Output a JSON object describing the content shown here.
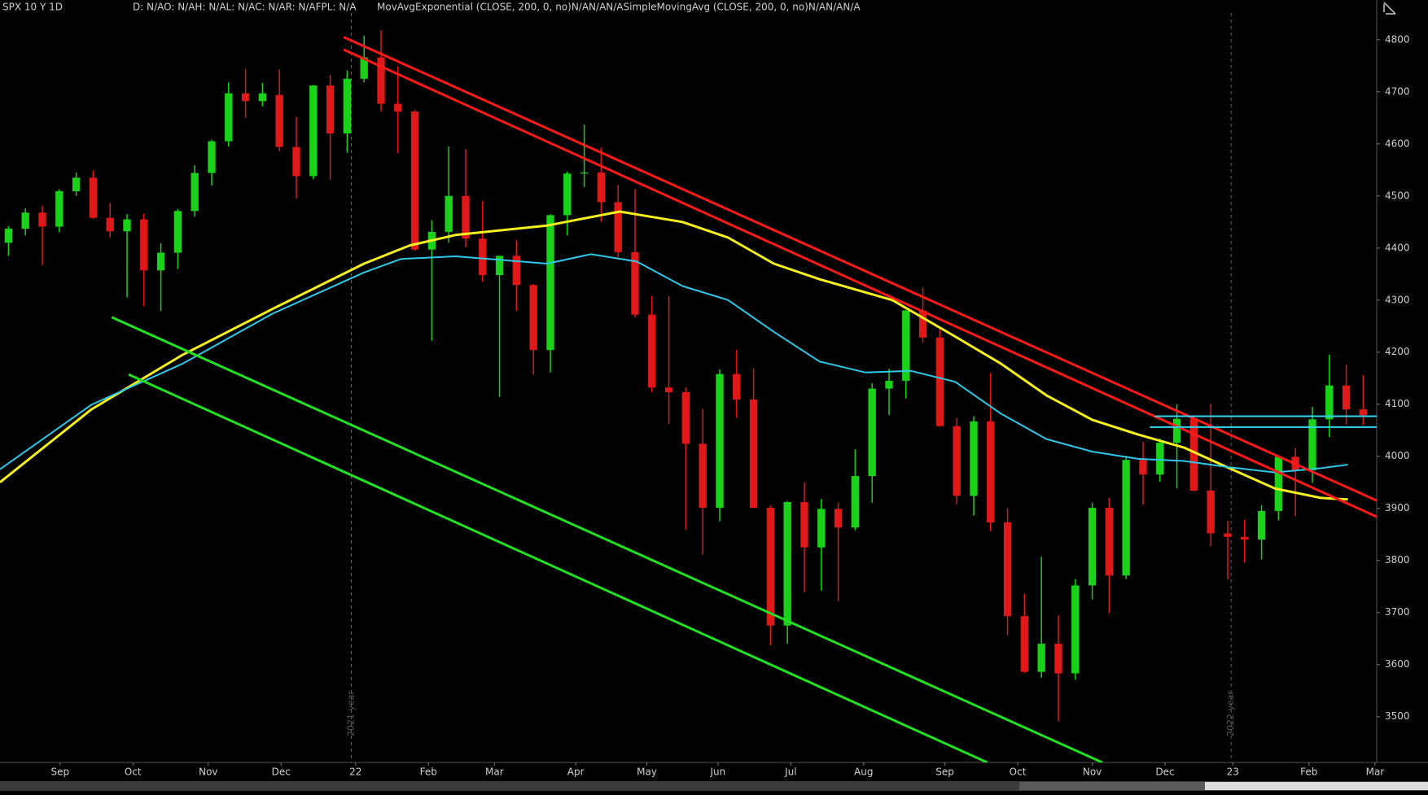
{
  "chart_data": {
    "type": "candlestick",
    "title": "SPX 10 Y 1D",
    "status": "D: N/AO: N/AH: N/AL: N/AC: N/AR: N/AFPL: N/A",
    "studies": "MovAvgExponential (CLOSE, 200, 0, no)N/AN/AN/ASimpleMovingAvg (CLOSE, 200, 0, no)N/AN/AN/A",
    "up_color": "#19d219",
    "down_color": "#e01818",
    "x": [
      0,
      1,
      2,
      3,
      4,
      5,
      6,
      7,
      8,
      9,
      10,
      11,
      12,
      13,
      14,
      15,
      16,
      17,
      18,
      19,
      20,
      21,
      22,
      23,
      24,
      25,
      26,
      27,
      28,
      29,
      30,
      31,
      32,
      33,
      34,
      35,
      36,
      37,
      38,
      39,
      40,
      41,
      42,
      43,
      44,
      45,
      46,
      47,
      48,
      49,
      50,
      51,
      52,
      53,
      54,
      55,
      56,
      57,
      58,
      59,
      60,
      61,
      62,
      63,
      64,
      65,
      66,
      67,
      68,
      69,
      70,
      71,
      72,
      73,
      74,
      75,
      76,
      77,
      78,
      79,
      80
    ],
    "open": [
      4410,
      4437,
      4468,
      4441,
      4509,
      4535,
      4458,
      4432,
      4455,
      4357,
      4391,
      4471,
      4544,
      4605,
      4697,
      4682,
      4694,
      4594,
      4538,
      4712,
      4620,
      4725,
      4766,
      4677,
      4662,
      4397,
      4431,
      4500,
      4418,
      4348,
      4385,
      4329,
      4204,
      4463,
      4543,
      4545,
      4488,
      4392,
      4272,
      4132,
      4123,
      4024,
      3901,
      4158,
      4109,
      3901,
      3675,
      3912,
      3825,
      3899,
      3863,
      3962,
      4130,
      4145,
      4280,
      4228,
      4058,
      3924,
      4067,
      3873,
      3693,
      3586,
      3640,
      3583,
      3752,
      3901,
      3771,
      3993,
      3965,
      4026,
      4072,
      3934,
      3852,
      3845,
      3840,
      3895,
      3999,
      3973,
      4071,
      4136,
      4090
    ],
    "high": [
      4442,
      4476,
      4481,
      4513,
      4545,
      4549,
      4486,
      4465,
      4466,
      4409,
      4475,
      4559,
      4608,
      4718,
      4744,
      4717,
      4743,
      4652,
      4713,
      4732,
      4741,
      4808,
      4818,
      4749,
      4665,
      4453,
      4595,
      4590,
      4490,
      4385,
      4415,
      4331,
      4465,
      4547,
      4637,
      4593,
      4521,
      4513,
      4308,
      4308,
      4132,
      4091,
      4167,
      4204,
      4169,
      3906,
      3914,
      3950,
      3918,
      3911,
      4013,
      4140,
      4168,
      4281,
      4325,
      4244,
      4073,
      4077,
      4160,
      3900,
      3736,
      3807,
      3694,
      3764,
      3911,
      3920,
      4001,
      4028,
      4034,
      4100,
      4076,
      4101,
      3876,
      3878,
      3906,
      4002,
      4016,
      4095,
      4195,
      4176,
      4156
    ],
    "low": [
      4385,
      4424,
      4367,
      4430,
      4500,
      4456,
      4420,
      4305,
      4288,
      4279,
      4360,
      4460,
      4520,
      4595,
      4650,
      4672,
      4586,
      4495,
      4532,
      4531,
      4583,
      4718,
      4662,
      4582,
      4395,
      4222,
      4410,
      4401,
      4335,
      4114,
      4279,
      4157,
      4161,
      4424,
      4517,
      4450,
      4381,
      4267,
      4123,
      4062,
      3859,
      3811,
      3875,
      4074,
      3900,
      3637,
      3640,
      3739,
      3742,
      3722,
      3858,
      3911,
      4079,
      4111,
      4218,
      4057,
      3907,
      3886,
      3856,
      3656,
      3584,
      3575,
      3491,
      3571,
      3725,
      3699,
      3764,
      3907,
      3951,
      3938,
      3933,
      3827,
      3764,
      3796,
      3802,
      3877,
      3885,
      3949,
      4037,
      4061,
      4060
    ],
    "close": [
      4437,
      4468,
      4441,
      4509,
      4535,
      4458,
      4432,
      4455,
      4357,
      4391,
      4471,
      4544,
      4605,
      4697,
      4682,
      4697,
      4594,
      4538,
      4712,
      4620,
      4725,
      4766,
      4677,
      4662,
      4397,
      4431,
      4500,
      4418,
      4348,
      4385,
      4329,
      4204,
      4463,
      4543,
      4545,
      4488,
      4392,
      4272,
      4132,
      4123,
      4024,
      3901,
      4158,
      4109,
      3901,
      3675,
      3912,
      3825,
      3899,
      3863,
      3962,
      4130,
      4145,
      4280,
      4228,
      4058,
      3924,
      4067,
      3873,
      3693,
      3586,
      3640,
      3583,
      3752,
      3901,
      3771,
      3993,
      3965,
      4026,
      4072,
      3934,
      3852,
      3845,
      3840,
      3895,
      3999,
      3973,
      4071,
      4136,
      4090,
      4079
    ],
    "series": [
      {
        "name": "MovAvgExponential",
        "color": "#f5f01e",
        "width": 3,
        "x": [
          -0.5,
          4.9,
          10.3,
          15.6,
          21,
          23.7,
          26.4,
          31.8,
          36.1,
          39.8,
          42.5,
          45.2,
          47.9,
          52.2,
          55.9,
          58.6,
          61.3,
          64,
          66.7,
          69.4,
          72.1,
          74.8,
          77.5,
          79.1
        ],
        "values": [
          3950,
          4090,
          4195,
          4283,
          4370,
          4405,
          4425,
          4443,
          4470,
          4450,
          4420,
          4370,
          4340,
          4300,
          4230,
          4178,
          4117,
          4070,
          4042,
          4017,
          3977,
          3938,
          3920,
          3917
        ]
      },
      {
        "name": "SimpleMovingAvg",
        "color": "#2fc8e8",
        "width": 2,
        "x": [
          -0.5,
          4.9,
          10.3,
          15.6,
          21,
          23.2,
          26.4,
          31.8,
          34.4,
          37.1,
          39.8,
          42.5,
          45.2,
          47.9,
          50.6,
          53.3,
          55.9,
          58.6,
          61.3,
          64,
          66.7,
          69.4,
          72.1,
          74.8,
          77.5,
          79.1
        ],
        "values": [
          3975,
          4099,
          4178,
          4274,
          4353,
          4379,
          4384,
          4370,
          4388,
          4374,
          4327,
          4300,
          4239,
          4182,
          4161,
          4164,
          4143,
          4082,
          4033,
          4009,
          3995,
          3991,
          3979,
          3969,
          3977,
          3984
        ]
      },
      {
        "color": "#ff1a1a",
        "width": 3,
        "x": [
          19.8,
          80.8
        ],
        "values": [
          4805,
          3915
        ]
      },
      {
        "color": "#ff1a1a",
        "width": 3,
        "x": [
          19.8,
          80.8
        ],
        "values": [
          4781,
          3884
        ]
      },
      {
        "color": "#22e022",
        "width": 3,
        "x": [
          6.1,
          64.6
        ],
        "values": [
          4267,
          3412
        ]
      },
      {
        "color": "#22e022",
        "width": 3,
        "x": [
          7.1,
          57.8
        ],
        "values": [
          4157,
          3412
        ]
      },
      {
        "color": "#35d6f0",
        "width": 2,
        "x": [
          67.7,
          80.8
        ],
        "values": [
          4077,
          4077
        ]
      },
      {
        "color": "#35d6f0",
        "width": 2,
        "x": [
          67.4,
          80.8
        ],
        "values": [
          4056,
          4056
        ]
      }
    ],
    "markers": [
      {
        "x": 20.25,
        "label": "2021 year"
      },
      {
        "x": 72.2,
        "label": "2022 year"
      }
    ],
    "xlim": [
      -0.5,
      80.8
    ],
    "ylim": [
      3412,
      4845
    ],
    "xticks": [
      {
        "value": 3.05,
        "label": "Sep"
      },
      {
        "value": 7.35,
        "label": "Oct"
      },
      {
        "value": 11.8,
        "label": "Nov"
      },
      {
        "value": 16.1,
        "label": "Dec"
      },
      {
        "value": 20.5,
        "label": "22"
      },
      {
        "value": 24.8,
        "label": "Feb"
      },
      {
        "value": 28.7,
        "label": "Mar"
      },
      {
        "value": 33.5,
        "label": "Apr"
      },
      {
        "value": 37.7,
        "label": "May"
      },
      {
        "value": 41.9,
        "label": "Jun"
      },
      {
        "value": 46.2,
        "label": "Jul"
      },
      {
        "value": 50.5,
        "label": "Aug"
      },
      {
        "value": 55.3,
        "label": "Sep"
      },
      {
        "value": 59.6,
        "label": "Oct"
      },
      {
        "value": 64.0,
        "label": "Nov"
      },
      {
        "value": 68.3,
        "label": "Dec"
      },
      {
        "value": 72.3,
        "label": "23"
      },
      {
        "value": 76.8,
        "label": "Feb"
      },
      {
        "value": 80.7,
        "label": "Mar"
      }
    ],
    "yticks": [
      3500,
      3600,
      3700,
      3800,
      3900,
      4000,
      4100,
      4200,
      4300,
      4400,
      4500,
      4600,
      4700,
      4800
    ]
  }
}
